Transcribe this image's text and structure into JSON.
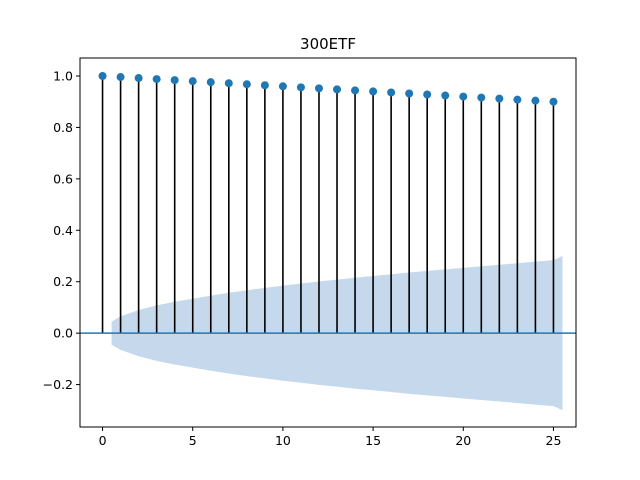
{
  "chart_data": {
    "type": "stem",
    "title": "300ETF",
    "xlabel": "",
    "ylabel": "",
    "xlim": [
      -1.25,
      26.25
    ],
    "ylim": [
      -0.365,
      1.07
    ],
    "x_ticks": [
      0,
      5,
      10,
      15,
      20,
      25
    ],
    "y_ticks": [
      -0.2,
      0.0,
      0.2,
      0.4,
      0.6,
      0.8,
      1.0
    ],
    "y_tick_labels": [
      "−0.2",
      "0.0",
      "0.2",
      "0.4",
      "0.6",
      "0.8",
      "1.0"
    ],
    "grid": false,
    "lags": [
      0,
      1,
      2,
      3,
      4,
      5,
      6,
      7,
      8,
      9,
      10,
      11,
      12,
      13,
      14,
      15,
      16,
      17,
      18,
      19,
      20,
      21,
      22,
      23,
      24,
      25
    ],
    "values": [
      1.0,
      0.996,
      0.992,
      0.988,
      0.984,
      0.98,
      0.976,
      0.972,
      0.968,
      0.964,
      0.96,
      0.956,
      0.952,
      0.948,
      0.944,
      0.94,
      0.936,
      0.932,
      0.928,
      0.924,
      0.92,
      0.916,
      0.912,
      0.908,
      0.904,
      0.9
    ],
    "confidence_band": {
      "x": [
        0.5,
        1,
        2,
        3,
        4,
        5,
        6,
        7,
        8,
        9,
        10,
        11,
        12,
        13,
        14,
        15,
        16,
        17,
        18,
        19,
        20,
        21,
        22,
        23,
        24,
        25,
        25.5
      ],
      "upper": [
        0.045,
        0.065,
        0.09,
        0.108,
        0.122,
        0.134,
        0.146,
        0.157,
        0.167,
        0.176,
        0.185,
        0.193,
        0.201,
        0.208,
        0.216,
        0.222,
        0.229,
        0.236,
        0.242,
        0.248,
        0.254,
        0.26,
        0.266,
        0.272,
        0.278,
        0.284,
        0.3
      ]
    },
    "colors": {
      "marker": "#1f77b4",
      "stem": "#000000",
      "baseline": "#1f77b4",
      "band": "#c6d9ec"
    }
  }
}
